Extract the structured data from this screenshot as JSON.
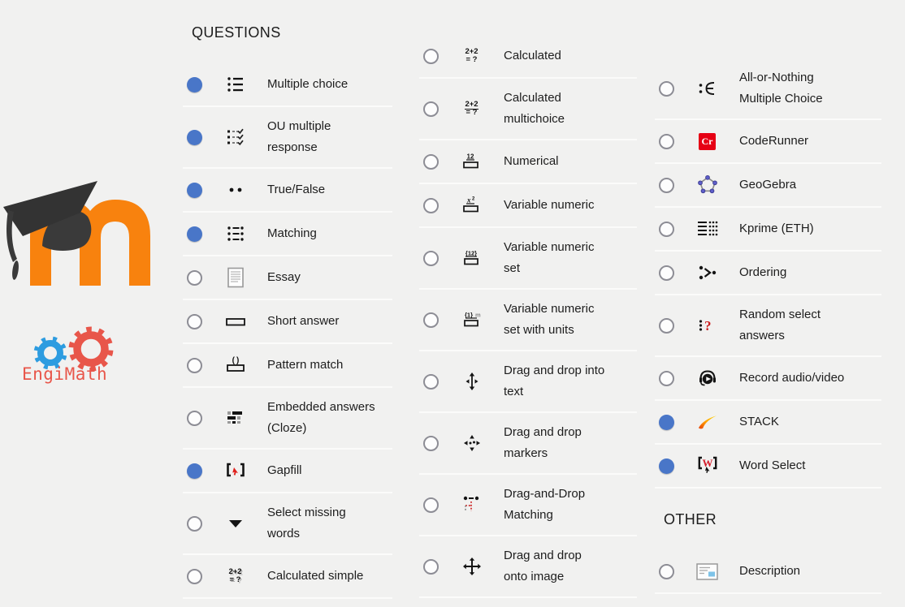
{
  "headers": {
    "questions": "QUESTIONS",
    "other": "OTHER"
  },
  "logos": {
    "moodle_alt": "Moodle",
    "engimath_text": "EngiMath"
  },
  "colors": {
    "background": "#f1f1f0",
    "divider": "#fbfbfa",
    "accent_blue": "#4976c8",
    "moodle_orange": "#f8820e",
    "engimath_red": "#e8564a",
    "engimath_blue": "#2d9ce0",
    "coderunner_red": "#e60014"
  },
  "columns": [
    {
      "items": [
        {
          "id": "multiple-choice",
          "label": "Multiple choice",
          "icon": "multiple-choice-icon",
          "selected": true
        },
        {
          "id": "ou-multiple-response",
          "label": "OU multiple\nresponse",
          "icon": "ou-multiple-response-icon",
          "selected": true
        },
        {
          "id": "true-false",
          "label": "True/False",
          "icon": "true-false-icon",
          "selected": true
        },
        {
          "id": "matching",
          "label": "Matching",
          "icon": "matching-icon",
          "selected": true
        },
        {
          "id": "essay",
          "label": "Essay",
          "icon": "essay-icon",
          "selected": false
        },
        {
          "id": "short-answer",
          "label": "Short answer",
          "icon": "short-answer-icon",
          "selected": false
        },
        {
          "id": "pattern-match",
          "label": "Pattern match",
          "icon": "pattern-match-icon",
          "selected": false
        },
        {
          "id": "embedded-answers-cloze",
          "label": "Embedded answers\n(Cloze)",
          "icon": "cloze-icon",
          "selected": false
        },
        {
          "id": "gapfill",
          "label": "Gapfill",
          "icon": "gapfill-icon",
          "selected": true
        },
        {
          "id": "select-missing-words",
          "label": "Select missing\nwords",
          "icon": "select-missing-words-icon",
          "selected": false
        },
        {
          "id": "calculated-simple",
          "label": "Calculated simple",
          "icon": "calculated-simple-icon",
          "selected": false
        }
      ]
    },
    {
      "items": [
        {
          "id": "calculated",
          "label": "Calculated",
          "icon": "calculated-icon",
          "selected": false
        },
        {
          "id": "calculated-multichoice",
          "label": "Calculated\nmultichoice",
          "icon": "calculated-multichoice-icon",
          "selected": false
        },
        {
          "id": "numerical",
          "label": "Numerical",
          "icon": "numerical-icon",
          "selected": false
        },
        {
          "id": "variable-numeric",
          "label": "Variable numeric",
          "icon": "variable-numeric-icon",
          "selected": false
        },
        {
          "id": "variable-numeric-set",
          "label": "Variable numeric\nset",
          "icon": "variable-numeric-set-icon",
          "selected": false
        },
        {
          "id": "variable-numeric-set-units",
          "label": "Variable numeric\nset with units",
          "icon": "variable-numeric-set-units-icon",
          "selected": false
        },
        {
          "id": "drag-drop-into-text",
          "label": "Drag and drop into\ntext",
          "icon": "drag-drop-into-text-icon",
          "selected": false
        },
        {
          "id": "drag-drop-markers",
          "label": "Drag and drop\nmarkers",
          "icon": "drag-drop-markers-icon",
          "selected": false
        },
        {
          "id": "drag-drop-matching",
          "label": "Drag-and-Drop\nMatching",
          "icon": "drag-drop-matching-icon",
          "selected": false
        },
        {
          "id": "drag-drop-onto-image",
          "label": "Drag and drop\nonto image",
          "icon": "drag-drop-onto-image-icon",
          "selected": false
        }
      ]
    },
    {
      "items": [
        {
          "id": "all-or-nothing-multiple-choice",
          "label": "All-or-Nothing\nMultiple Choice",
          "icon": "all-or-nothing-icon",
          "selected": false
        },
        {
          "id": "coderunner",
          "label": "CodeRunner",
          "icon": "coderunner-icon",
          "selected": false
        },
        {
          "id": "geogebra",
          "label": "GeoGebra",
          "icon": "geogebra-icon",
          "selected": false
        },
        {
          "id": "kprime-eth",
          "label": "Kprime (ETH)",
          "icon": "kprime-icon",
          "selected": false
        },
        {
          "id": "ordering",
          "label": "Ordering",
          "icon": "ordering-icon",
          "selected": false
        },
        {
          "id": "random-select-answers",
          "label": "Random select\nanswers",
          "icon": "random-select-icon",
          "selected": false
        },
        {
          "id": "record-audio-video",
          "label": "Record audio/video",
          "icon": "record-audio-video-icon",
          "selected": false
        },
        {
          "id": "stack",
          "label": "STACK",
          "icon": "stack-icon",
          "selected": true
        },
        {
          "id": "word-select",
          "label": "Word Select",
          "icon": "word-select-icon",
          "selected": true
        }
      ]
    }
  ],
  "other": {
    "items": [
      {
        "id": "description",
        "label": "Description",
        "icon": "description-icon",
        "selected": false
      }
    ]
  }
}
